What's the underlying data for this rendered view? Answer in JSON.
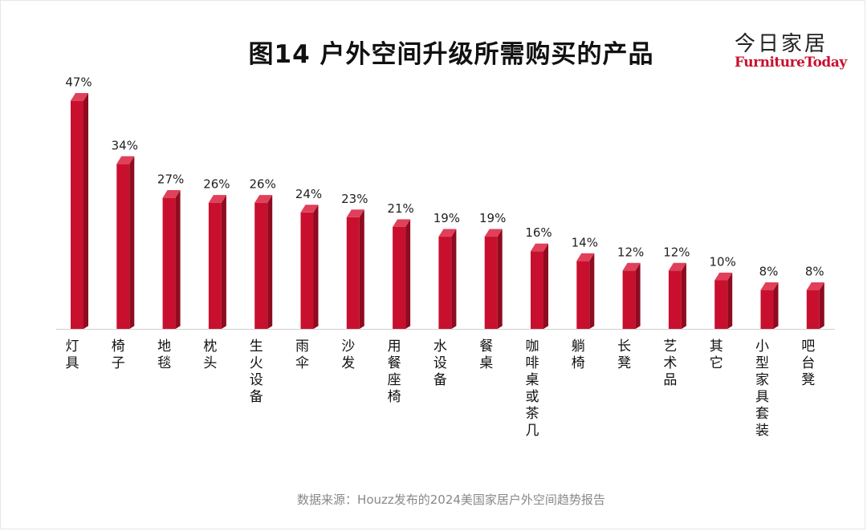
{
  "logo": {
    "cn": "今日家居",
    "en": "FurnitureToday"
  },
  "source": "数据来源：Houzz发布的2024美国家居户外空间趋势报告",
  "colors": {
    "bar": "#c8102e",
    "bar_dark": "#8e0b20",
    "bar_top": "#e0405a"
  },
  "chart_data": {
    "type": "bar",
    "title": "图14  户外空间升级所需购买的产品",
    "categories": [
      "灯具",
      "椅子",
      "地毯",
      "枕头",
      "生火设备",
      "雨伞",
      "沙发",
      "用餐座椅",
      "水设备",
      "餐桌",
      "咖啡桌或茶几",
      "躺椅",
      "长凳",
      "艺术品",
      "其它",
      "小型家具套装",
      "吧台凳"
    ],
    "values": [
      47,
      34,
      27,
      26,
      26,
      24,
      23,
      21,
      19,
      19,
      16,
      14,
      12,
      12,
      10,
      8,
      8
    ],
    "value_labels": [
      "47%",
      "34%",
      "27%",
      "26%",
      "26%",
      "24%",
      "23%",
      "21%",
      "19%",
      "19%",
      "16%",
      "14%",
      "12%",
      "12%",
      "10%",
      "8%",
      "8%"
    ],
    "unit": "%",
    "ylim": [
      0,
      50
    ],
    "grid": false,
    "legend": "none"
  }
}
